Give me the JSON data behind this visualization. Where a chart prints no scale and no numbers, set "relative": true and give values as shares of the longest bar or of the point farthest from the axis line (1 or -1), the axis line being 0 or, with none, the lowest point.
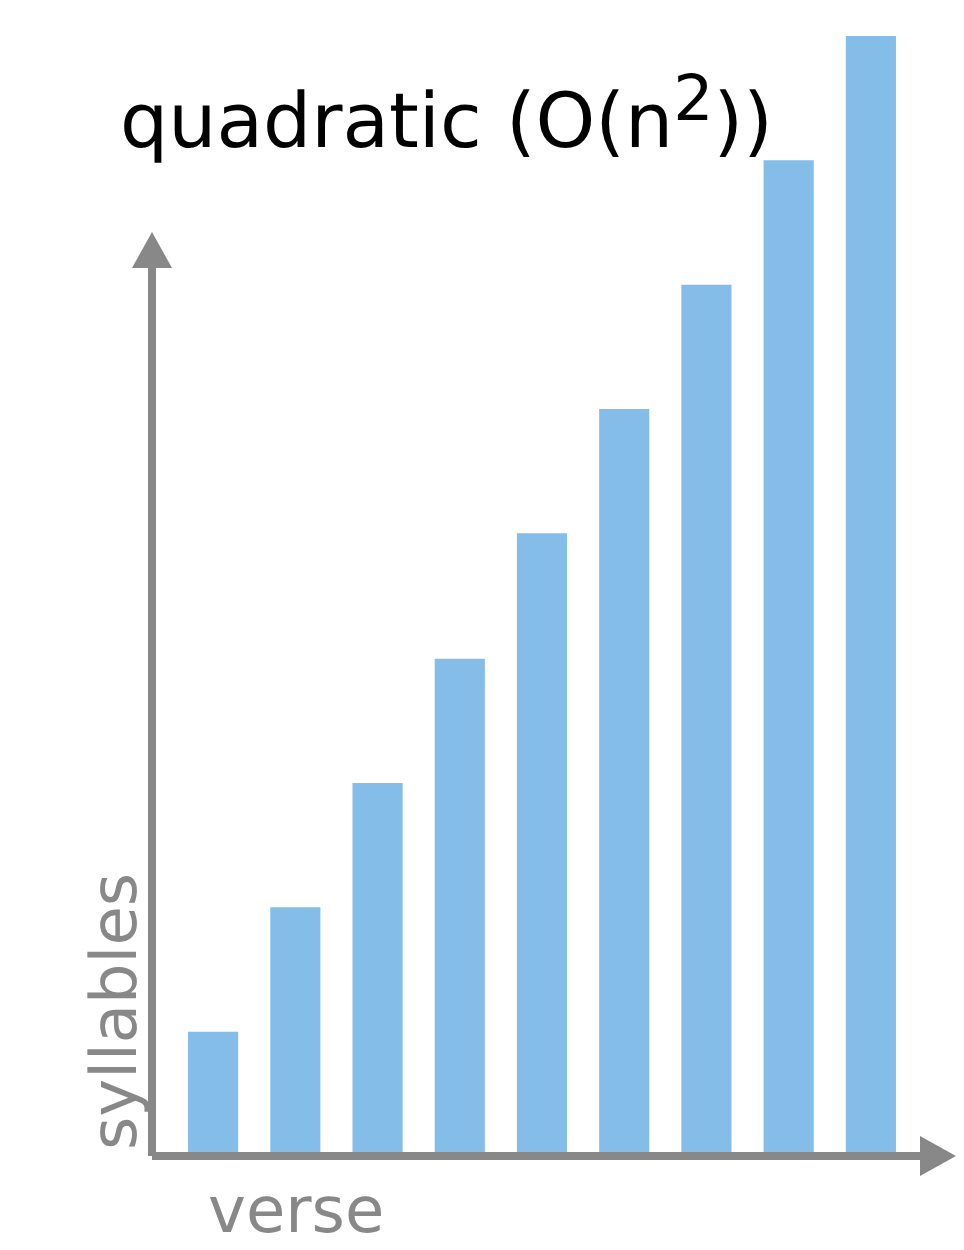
{
  "chart_data": {
    "type": "bar",
    "title": "quadratic (O(n$^{2}$))",
    "xlabel": "verse",
    "ylabel": "syllables",
    "relative": true,
    "legend": false,
    "grid": false,
    "categories": [
      null,
      null,
      null,
      null,
      null,
      null,
      null,
      null,
      null
    ],
    "series": [
      {
        "color": "#85bde9",
        "values": [
          0.111,
          0.222,
          0.333,
          0.444,
          0.556,
          0.667,
          0.778,
          0.889,
          1
        ]
      }
    ]
  }
}
